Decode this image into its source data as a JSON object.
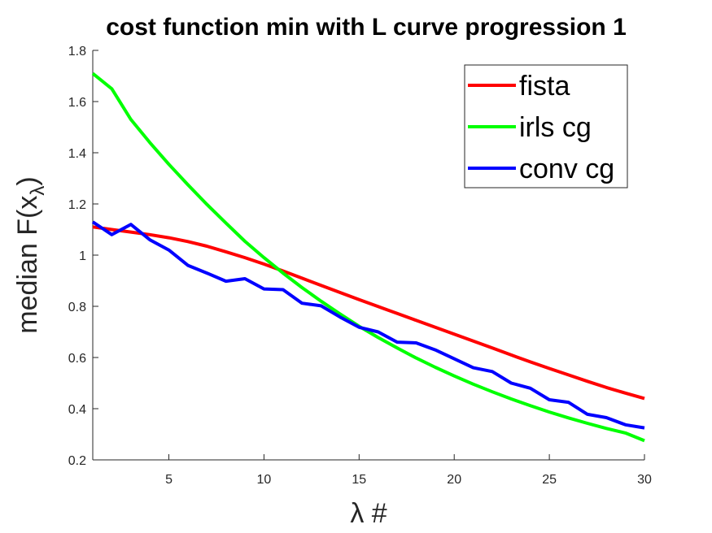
{
  "chart_data": {
    "type": "line",
    "title": "cost function min with L curve progression 1",
    "xlabel": "λ #",
    "ylabel_main": "median F(x",
    "ylabel_sub": "λ",
    "ylabel_close": ")",
    "xlim": [
      1,
      30
    ],
    "ylim": [
      0.2,
      1.8
    ],
    "xticks": [
      5,
      10,
      15,
      20,
      25,
      30
    ],
    "xtick_labels": [
      "5",
      "10",
      "15",
      "20",
      "25",
      "30"
    ],
    "yticks": [
      0.2,
      0.4,
      0.6,
      0.8,
      1.0,
      1.2,
      1.4,
      1.6,
      1.8
    ],
    "ytick_labels": [
      "0.2",
      "0.4",
      "0.6",
      "0.8",
      "1",
      "1.2",
      "1.4",
      "1.6",
      "1.8"
    ],
    "legend_position": "top-right",
    "x": [
      1,
      2,
      3,
      4,
      5,
      6,
      7,
      8,
      9,
      10,
      11,
      12,
      13,
      14,
      15,
      16,
      17,
      18,
      19,
      20,
      21,
      22,
      23,
      24,
      25,
      26,
      27,
      28,
      29,
      30
    ],
    "series": [
      {
        "name": "fista",
        "color": "#ff0000",
        "values": [
          1.11,
          1.1,
          1.09,
          1.08,
          1.068,
          1.053,
          1.035,
          1.013,
          0.99,
          0.965,
          0.938,
          0.91,
          0.882,
          0.854,
          0.826,
          0.799,
          0.772,
          0.745,
          0.718,
          0.691,
          0.664,
          0.637,
          0.61,
          0.583,
          0.557,
          0.532,
          0.507,
          0.483,
          0.461,
          0.44
        ]
      },
      {
        "name": "irls cg",
        "color": "#00ff00",
        "values": [
          1.71,
          1.65,
          1.53,
          1.44,
          1.355,
          1.275,
          1.198,
          1.125,
          1.054,
          0.99,
          0.93,
          0.873,
          0.82,
          0.77,
          0.722,
          0.678,
          0.637,
          0.598,
          0.562,
          0.528,
          0.496,
          0.466,
          0.438,
          0.412,
          0.387,
          0.364,
          0.343,
          0.323,
          0.305,
          0.275
        ]
      },
      {
        "name": "conv cg",
        "color": "#0000ff",
        "values": [
          1.13,
          1.08,
          1.12,
          1.06,
          1.02,
          0.96,
          0.93,
          0.898,
          0.908,
          0.868,
          0.865,
          0.812,
          0.802,
          0.758,
          0.718,
          0.7,
          0.66,
          0.657,
          0.63,
          0.595,
          0.56,
          0.545,
          0.5,
          0.48,
          0.435,
          0.425,
          0.378,
          0.365,
          0.337,
          0.325
        ]
      }
    ]
  }
}
